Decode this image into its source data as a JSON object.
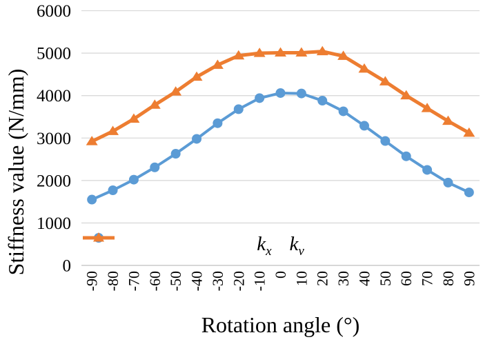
{
  "figure": {
    "background": "#ffffff",
    "text_color": "#000000"
  },
  "chart_data": {
    "type": "line",
    "title": "",
    "xlabel": "Rotation angle (°)",
    "ylabel": "Stiffness value (N/mm)",
    "categories": [
      -90,
      -80,
      -70,
      -60,
      -50,
      -40,
      -30,
      -20,
      -10,
      0,
      10,
      20,
      30,
      40,
      50,
      60,
      70,
      80,
      90
    ],
    "x_tick_labels": [
      "-90",
      "-80",
      "-70",
      "-60",
      "-50",
      "-40",
      "-30",
      "-20",
      "-10",
      "0",
      "10",
      "20",
      "30",
      "40",
      "50",
      "60",
      "70",
      "80",
      "90"
    ],
    "x_tick_rotation_deg": -90,
    "y_ticks": [
      0,
      1000,
      2000,
      3000,
      4000,
      5000,
      6000
    ],
    "y_tick_labels": [
      "0",
      "1000",
      "2000",
      "3000",
      "4000",
      "5000",
      "6000"
    ],
    "ylim": [
      0,
      6000
    ],
    "grid": "horizontal",
    "gridline_color": "#d9d9d9",
    "axis_line_color": "#bfbfbf",
    "legend_position": "inside-bottom-center",
    "series": [
      {
        "name": "kx",
        "label_main": "k",
        "label_sub": "x",
        "color": "#5b9bd5",
        "marker": "circle",
        "line_width": 4,
        "values": [
          1550,
          1770,
          2020,
          2310,
          2630,
          2980,
          3350,
          3680,
          3940,
          4060,
          4050,
          3880,
          3630,
          3290,
          2930,
          2570,
          2250,
          1950,
          1720
        ]
      },
      {
        "name": "kv",
        "label_main": "k",
        "label_sub": "v",
        "color": "#ed7d31",
        "marker": "triangle",
        "line_width": 5,
        "values": [
          2920,
          3160,
          3450,
          3780,
          4090,
          4440,
          4720,
          4940,
          5000,
          5010,
          5010,
          5040,
          4930,
          4630,
          4330,
          4000,
          3700,
          3400,
          3120
        ]
      }
    ]
  }
}
